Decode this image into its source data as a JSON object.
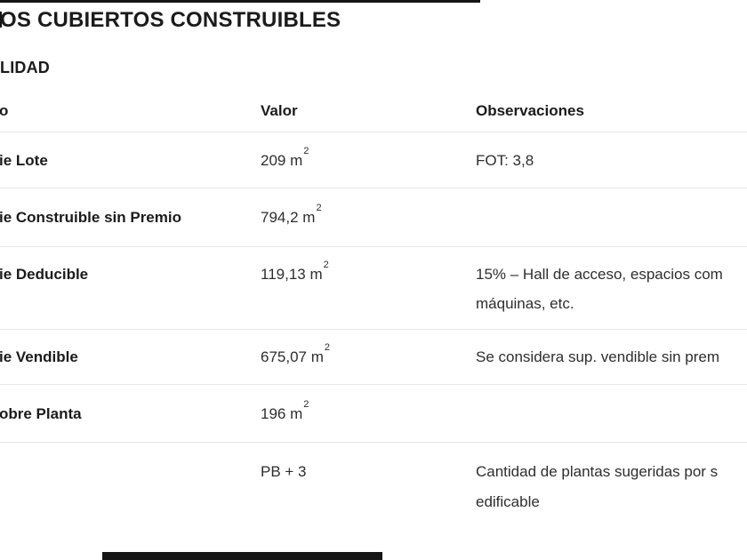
{
  "colors": {
    "text-strong": "#1b1b1b",
    "text-body": "#2e2e2e",
    "rule": "#e8e8e8",
    "fragment": "#151515",
    "background": "#ffffff"
  },
  "page": {
    "title": "OS CUBIERTOS CONSTRUIBLES",
    "section_heading": "LIDAD"
  },
  "table": {
    "headers": {
      "concept": "o",
      "value": "Valor",
      "observations": "Observaciones"
    },
    "rows": [
      {
        "concept": "ie Lote",
        "value": "209 m",
        "value_sup": "2",
        "obs1": "FOT: 3,8",
        "obs2": ""
      },
      {
        "concept": "ie Construible sin Premio",
        "value": "794,2 m",
        "value_sup": "2",
        "obs1": "",
        "obs2": ""
      },
      {
        "concept": "ie Deducible",
        "value": "119,13 m",
        "value_sup": "2",
        "obs1": "15% – Hall de acceso, espacios com",
        "obs2": "máquinas, etc."
      },
      {
        "concept": "ie Vendible",
        "value": "675,07 m",
        "value_sup": "2",
        "obs1": "Se considera sup. vendible sin prem",
        "obs2": ""
      },
      {
        "concept": "obre Planta",
        "value": "196 m",
        "value_sup": "2",
        "obs1": "",
        "obs2": ""
      },
      {
        "concept": "",
        "value": "PB + 3",
        "value_sup": "",
        "obs1": "Cantidad de plantas sugeridas por s",
        "obs2": "edificable"
      }
    ]
  }
}
